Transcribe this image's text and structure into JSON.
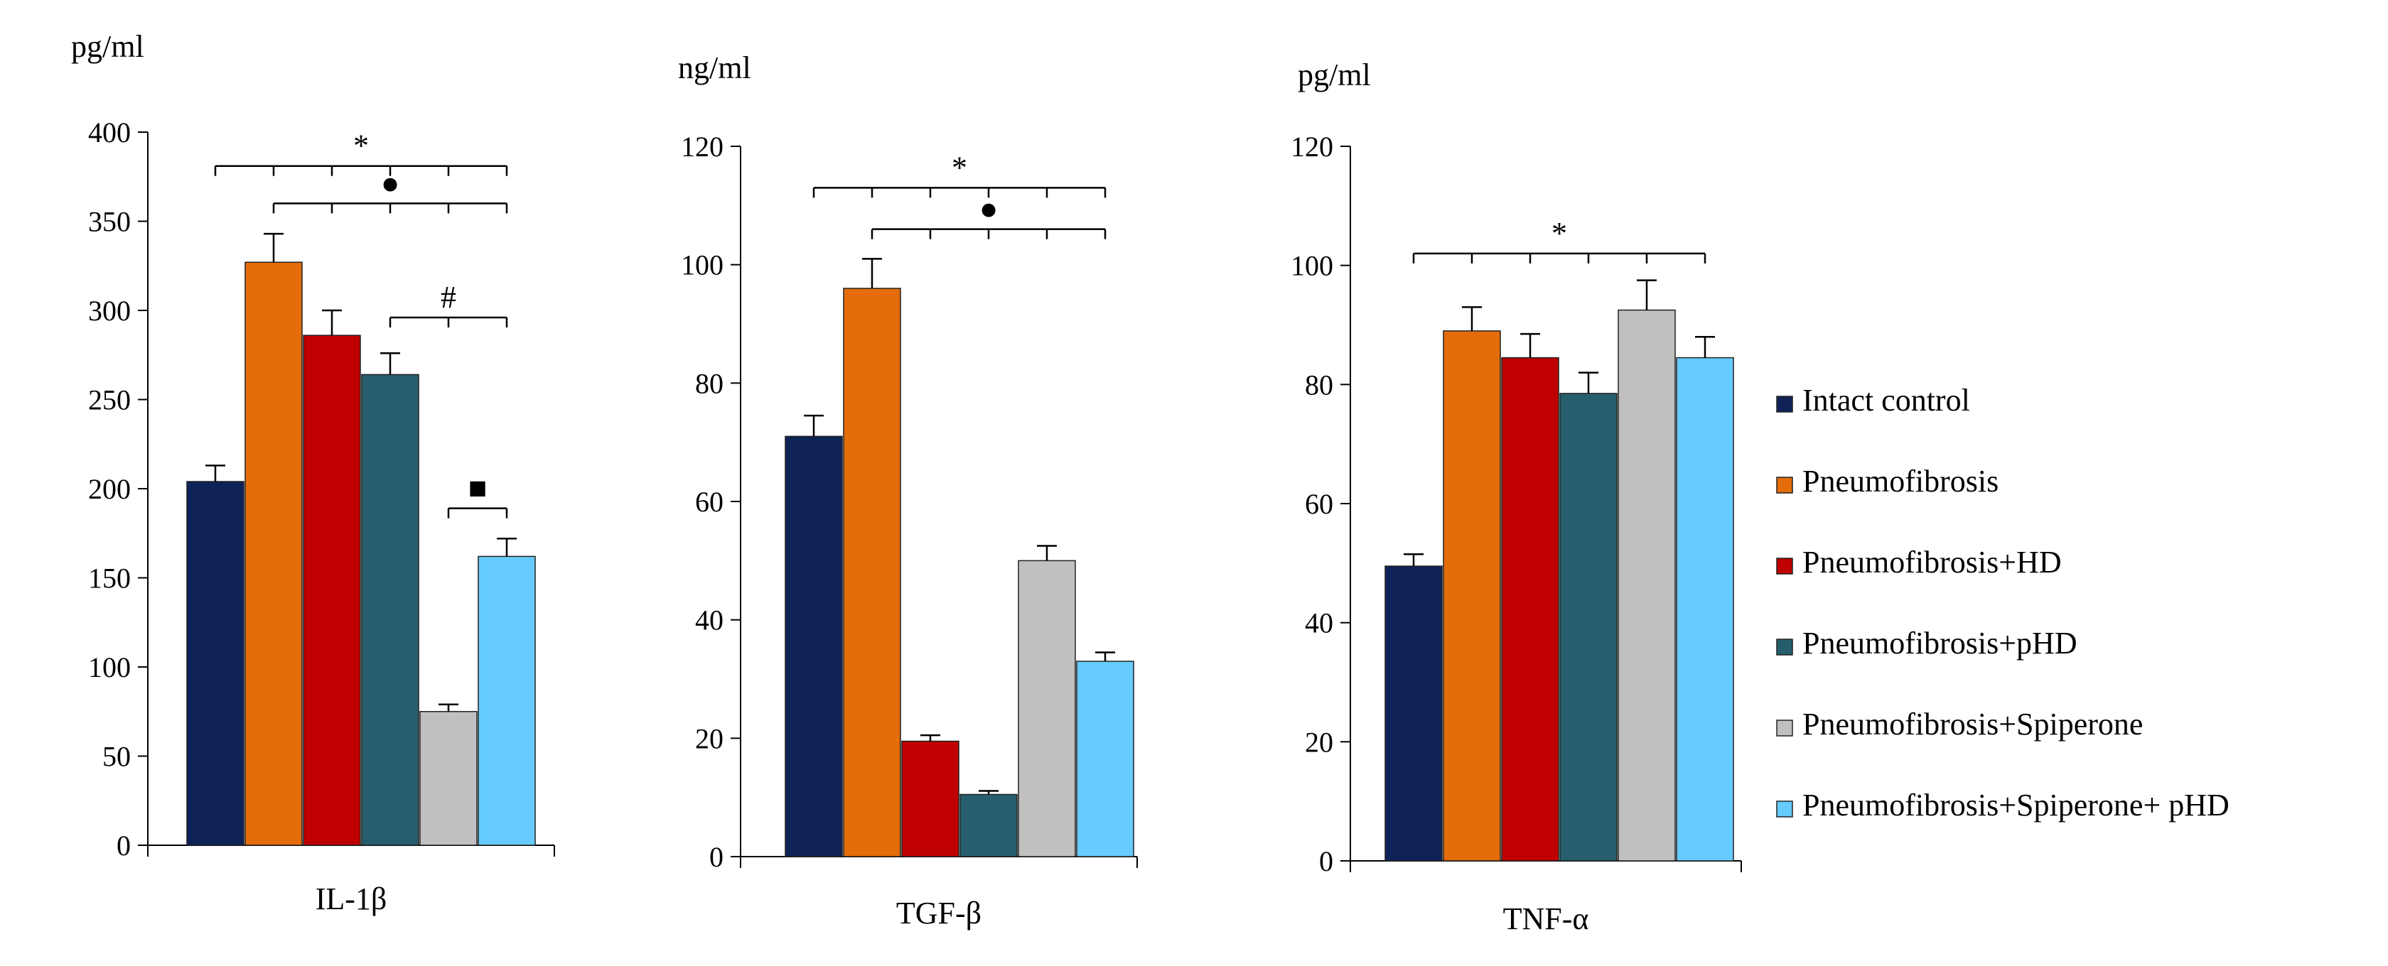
{
  "chart_data": [
    {
      "type": "bar",
      "unit": "pg/ml",
      "xlabel": "IL-1β",
      "ylim": [
        0,
        400
      ],
      "yticks": [
        0,
        50,
        100,
        150,
        200,
        250,
        300,
        350,
        400
      ],
      "values": [
        204,
        327,
        286,
        264,
        75,
        162
      ],
      "errors": [
        9,
        16,
        14,
        12,
        4,
        10
      ],
      "brackets": [
        {
          "from": 0,
          "to": 5,
          "value": 381,
          "symbol": "*"
        },
        {
          "from": 1,
          "to": 5,
          "value": 360,
          "symbol": "●"
        },
        {
          "from": 3,
          "to": 5,
          "value": 296,
          "symbol": "#"
        },
        {
          "from": 4,
          "to": 5,
          "value": 189,
          "symbol": "■"
        }
      ]
    },
    {
      "type": "bar",
      "unit": "ng/ml",
      "xlabel": "TGF-β",
      "ylim": [
        0,
        120
      ],
      "yticks": [
        0,
        20,
        40,
        60,
        80,
        100,
        120
      ],
      "values": [
        71,
        96,
        19.5,
        10.5,
        50,
        33
      ],
      "errors": [
        3.5,
        5,
        1,
        0.6,
        2.5,
        1.5
      ],
      "brackets": [
        {
          "from": 0,
          "to": 5,
          "value": 113,
          "symbol": "*"
        },
        {
          "from": 1,
          "to": 5,
          "value": 106,
          "symbol": "●"
        }
      ]
    },
    {
      "type": "bar",
      "unit": "pg/ml",
      "xlabel": "TNF-α",
      "ylim": [
        0,
        120
      ],
      "yticks": [
        0,
        20,
        40,
        60,
        80,
        100,
        120
      ],
      "values": [
        49.5,
        89,
        84.5,
        78.5,
        92.5,
        84.5
      ],
      "errors": [
        2,
        4,
        4,
        3.5,
        5,
        3.5
      ],
      "brackets": [
        {
          "from": 0,
          "to": 5,
          "value": 102,
          "symbol": "*"
        }
      ]
    }
  ],
  "legend": {
    "position": "right",
    "items": [
      {
        "label": "Intact control",
        "color": "#0e2258"
      },
      {
        "label": "Pneumofibrosis",
        "color": "#e46c0a"
      },
      {
        "label": "Pneumofibrosis+HD",
        "color": "#c00000"
      },
      {
        "label": "Pneumofibrosis+pHD",
        "color": "#265e6e"
      },
      {
        "label": "Pneumofibrosis+Spiperone",
        "color": "#c0c0c0"
      },
      {
        "label": "Pneumofibrosis+Spiperone+ pHD",
        "color": "#66ccff"
      }
    ]
  }
}
